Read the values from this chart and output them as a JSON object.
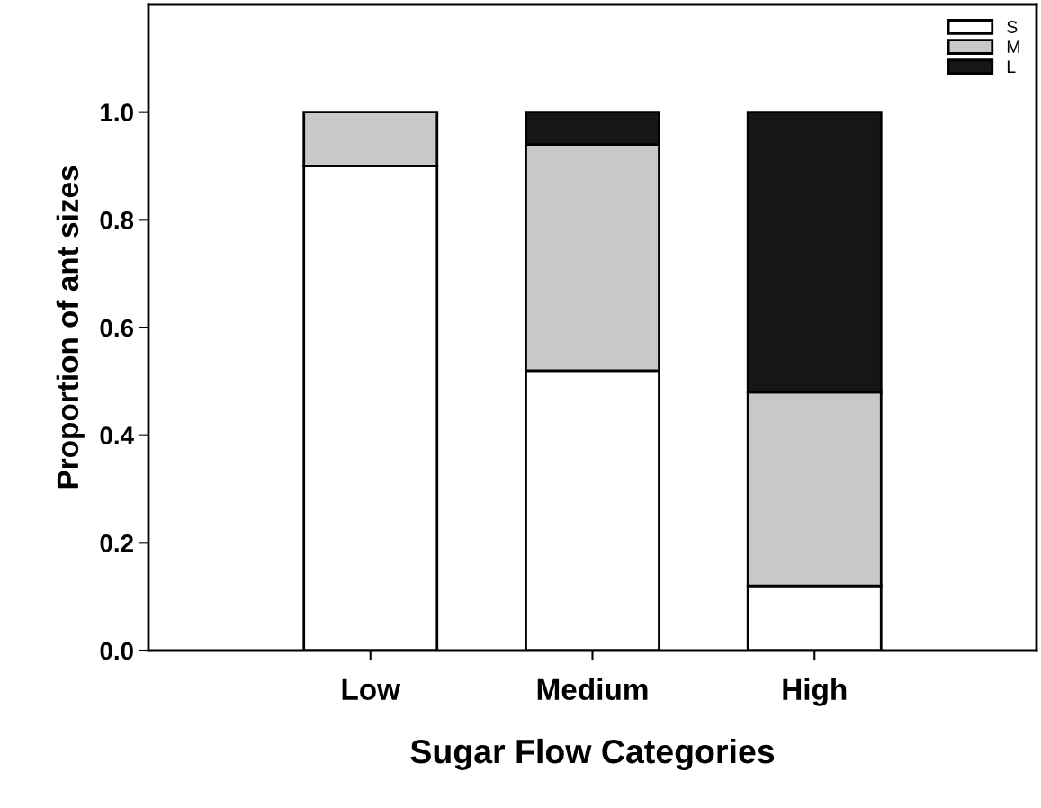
{
  "chart_data": {
    "type": "bar",
    "stacked": true,
    "xlabel": "Sugar Flow Categories",
    "ylabel": "Proportion of ant sizes",
    "categories": [
      "Low",
      "Medium",
      "High"
    ],
    "series": [
      {
        "name": "S",
        "color": "#ffffff",
        "values": [
          0.9,
          0.52,
          0.12
        ]
      },
      {
        "name": "M",
        "color": "#c8c8c8",
        "values": [
          0.1,
          0.42,
          0.36
        ]
      },
      {
        "name": "L",
        "color": "#161616",
        "values": [
          null,
          0.06,
          0.52
        ]
      }
    ],
    "ylim": [
      0,
      1.2
    ],
    "yticks": [
      {
        "value": 0,
        "label": "0.0"
      },
      {
        "value": 0.2,
        "label": "0.2"
      },
      {
        "value": 0.4,
        "label": "0.4"
      },
      {
        "value": 0.6,
        "label": "0.6"
      },
      {
        "value": 0.8,
        "label": "0.8"
      },
      {
        "value": 1.0,
        "label": "1.0"
      }
    ],
    "grid": false,
    "legend": "top right"
  }
}
